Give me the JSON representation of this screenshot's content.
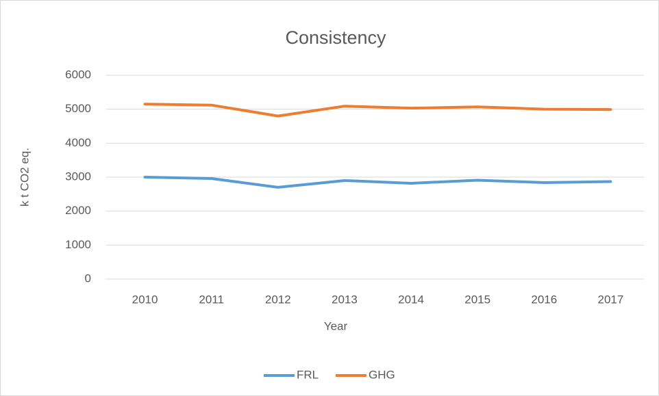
{
  "chart_data": {
    "type": "line",
    "title": "Consistency",
    "x_label": "Year",
    "y_label": "k t CO2 eq.",
    "categories": [
      "2010",
      "2011",
      "2012",
      "2013",
      "2014",
      "2015",
      "2016",
      "2017"
    ],
    "series": [
      {
        "name": "FRL",
        "color": "#5b9bd5",
        "values": [
          3000,
          2960,
          2700,
          2900,
          2820,
          2910,
          2840,
          2870
        ]
      },
      {
        "name": "GHG",
        "color": "#ed7d31",
        "values": [
          5150,
          5120,
          4800,
          5090,
          5030,
          5070,
          5000,
          4990
        ]
      }
    ],
    "ylim": [
      0,
      6000
    ],
    "yticks": [
      0,
      1000,
      2000,
      3000,
      4000,
      5000,
      6000
    ],
    "grid": true,
    "legend": "bottom"
  }
}
